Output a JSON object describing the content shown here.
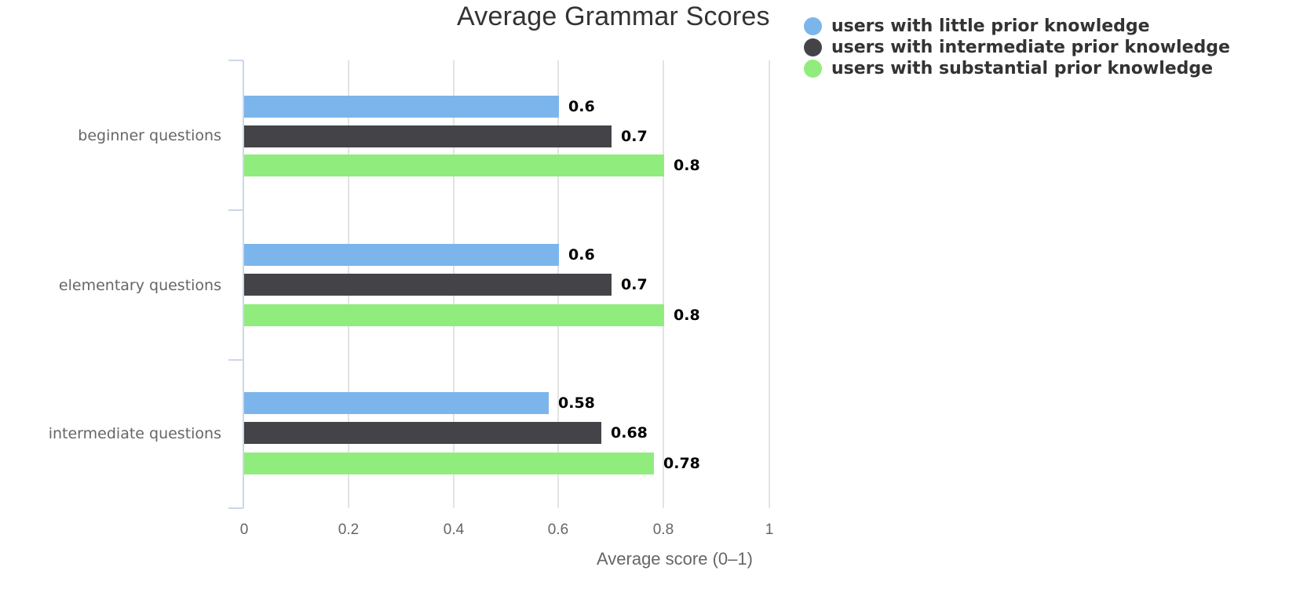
{
  "chart_data": {
    "type": "bar",
    "orientation": "horizontal",
    "title": "Average Grammar Scores",
    "xlabel": "Average score (0–1)",
    "ylabel": "",
    "xlim": [
      0,
      1
    ],
    "x_ticks": [
      "0",
      "0.2",
      "0.4",
      "0.6",
      "0.8",
      "1"
    ],
    "grid": true,
    "legend_position": "top-right",
    "categories": [
      "beginner questions",
      "elementary questions",
      "intermediate questions"
    ],
    "series": [
      {
        "name": "users with little prior knowledge",
        "color": "#7cb5ec",
        "values": [
          0.6,
          0.6,
          0.58
        ],
        "labels": [
          "0.6",
          "0.6",
          "0.58"
        ]
      },
      {
        "name": "users with intermediate prior knowledge",
        "color": "#434348",
        "values": [
          0.7,
          0.7,
          0.68
        ],
        "labels": [
          "0.7",
          "0.7",
          "0.68"
        ]
      },
      {
        "name": "users with substantial prior knowledge",
        "color": "#90ed7d",
        "values": [
          0.8,
          0.8,
          0.78
        ],
        "labels": [
          "0.8",
          "0.8",
          "0.78"
        ]
      }
    ]
  }
}
